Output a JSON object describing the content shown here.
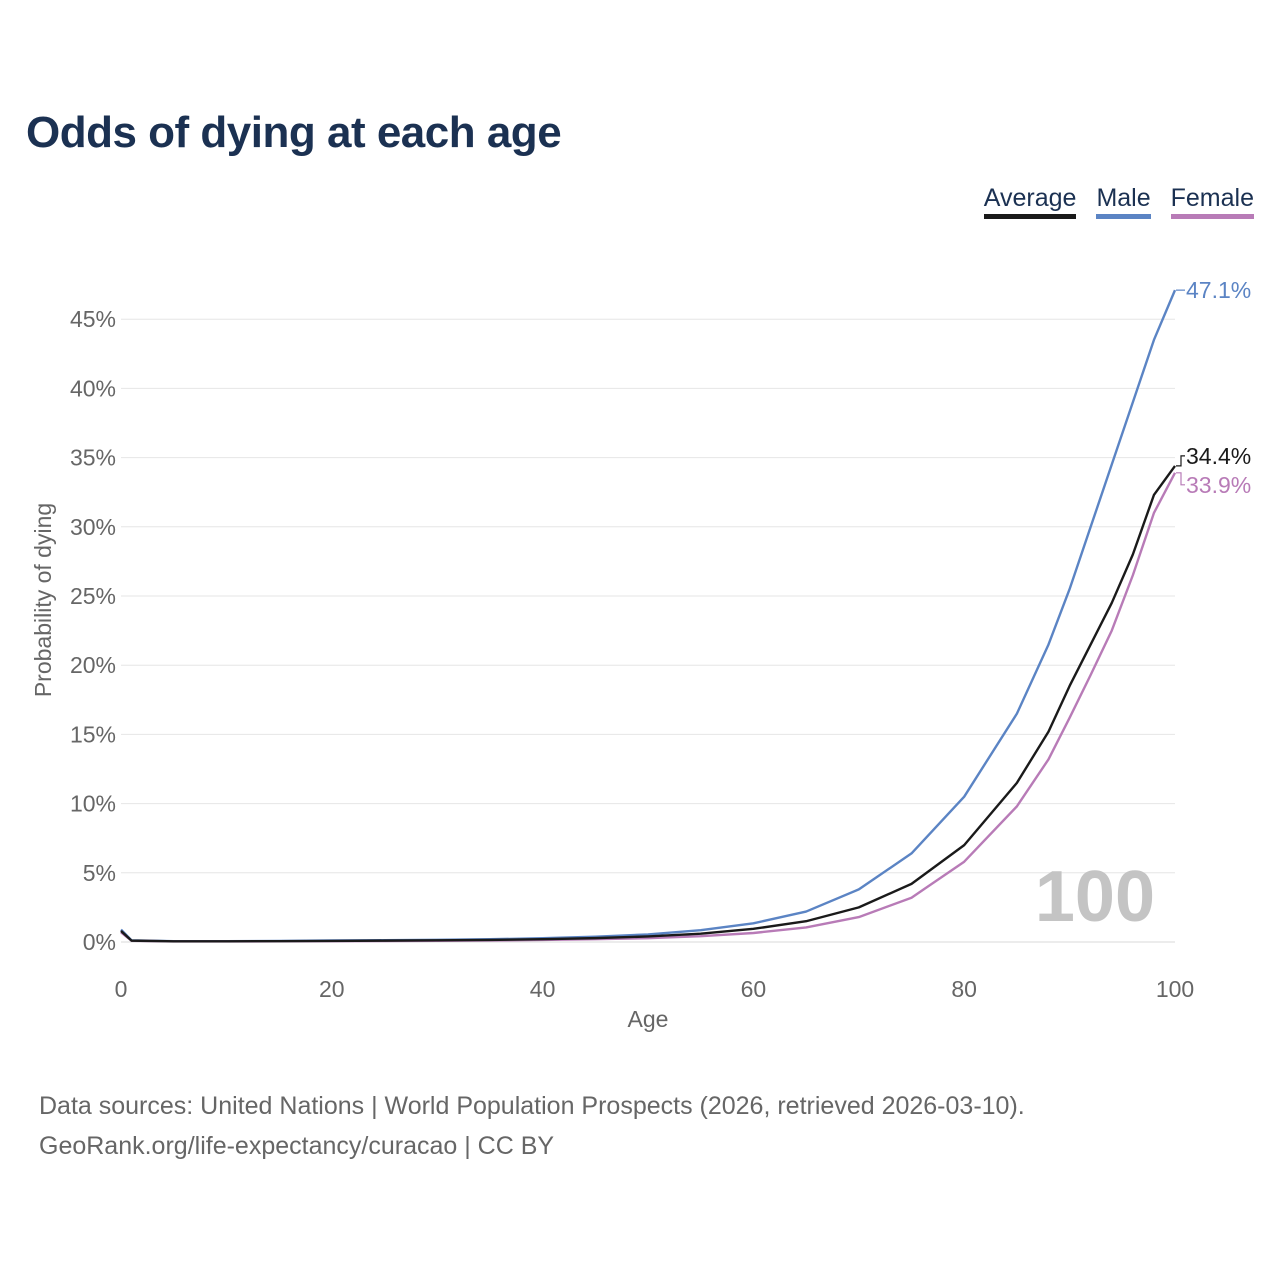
{
  "chart_data": {
    "type": "line",
    "title": "Odds of dying at each age",
    "xlabel": "Age",
    "ylabel": "Probability of dying",
    "xlim": [
      0,
      100
    ],
    "ylim": [
      0,
      48
    ],
    "xticks": [
      0,
      20,
      40,
      60,
      80,
      100
    ],
    "yticks": [
      0,
      5,
      10,
      15,
      20,
      25,
      30,
      35,
      40,
      45
    ],
    "tick_suffix": "%",
    "grid": true,
    "legend_position": "top-right",
    "watermark": "100",
    "series": [
      {
        "name": "Average",
        "color": "#1a1a1a",
        "end_label": "34.4%",
        "points": [
          [
            0,
            0.8
          ],
          [
            1,
            0.1
          ],
          [
            5,
            0.05
          ],
          [
            10,
            0.05
          ],
          [
            15,
            0.06
          ],
          [
            20,
            0.08
          ],
          [
            25,
            0.1
          ],
          [
            30,
            0.12
          ],
          [
            35,
            0.15
          ],
          [
            40,
            0.2
          ],
          [
            45,
            0.28
          ],
          [
            50,
            0.4
          ],
          [
            55,
            0.6
          ],
          [
            60,
            0.95
          ],
          [
            65,
            1.5
          ],
          [
            70,
            2.5
          ],
          [
            75,
            4.2
          ],
          [
            80,
            7.0
          ],
          [
            85,
            11.5
          ],
          [
            88,
            15.2
          ],
          [
            90,
            18.5
          ],
          [
            92,
            21.5
          ],
          [
            94,
            24.5
          ],
          [
            96,
            28.0
          ],
          [
            98,
            32.3
          ],
          [
            100,
            34.4
          ]
        ]
      },
      {
        "name": "Male",
        "color": "#5b84c4",
        "end_label": "47.1%",
        "points": [
          [
            0,
            0.9
          ],
          [
            1,
            0.12
          ],
          [
            5,
            0.06
          ],
          [
            10,
            0.06
          ],
          [
            15,
            0.08
          ],
          [
            20,
            0.11
          ],
          [
            25,
            0.13
          ],
          [
            30,
            0.16
          ],
          [
            35,
            0.2
          ],
          [
            40,
            0.27
          ],
          [
            45,
            0.38
          ],
          [
            50,
            0.55
          ],
          [
            55,
            0.85
          ],
          [
            60,
            1.35
          ],
          [
            65,
            2.2
          ],
          [
            70,
            3.8
          ],
          [
            75,
            6.4
          ],
          [
            80,
            10.5
          ],
          [
            85,
            16.5
          ],
          [
            88,
            21.5
          ],
          [
            90,
            25.5
          ],
          [
            92,
            30.0
          ],
          [
            94,
            34.5
          ],
          [
            96,
            39.0
          ],
          [
            98,
            43.5
          ],
          [
            100,
            47.1
          ]
        ]
      },
      {
        "name": "Female",
        "color": "#b87bb7",
        "end_label": "33.9%",
        "points": [
          [
            0,
            0.7
          ],
          [
            1,
            0.09
          ],
          [
            5,
            0.04
          ],
          [
            10,
            0.04
          ],
          [
            15,
            0.05
          ],
          [
            20,
            0.06
          ],
          [
            25,
            0.07
          ],
          [
            30,
            0.09
          ],
          [
            35,
            0.11
          ],
          [
            40,
            0.15
          ],
          [
            45,
            0.2
          ],
          [
            50,
            0.28
          ],
          [
            55,
            0.42
          ],
          [
            60,
            0.65
          ],
          [
            65,
            1.05
          ],
          [
            70,
            1.8
          ],
          [
            75,
            3.2
          ],
          [
            80,
            5.8
          ],
          [
            85,
            9.8
          ],
          [
            88,
            13.2
          ],
          [
            90,
            16.2
          ],
          [
            92,
            19.3
          ],
          [
            94,
            22.5
          ],
          [
            96,
            26.5
          ],
          [
            98,
            31.0
          ],
          [
            100,
            33.9
          ]
        ]
      }
    ]
  },
  "footer": {
    "sources": "Data sources: United Nations | World Population Prospects (2026, retrieved 2026-03-10).",
    "credit": "GeoRank.org/life-expectancy/curacao | CC BY"
  }
}
